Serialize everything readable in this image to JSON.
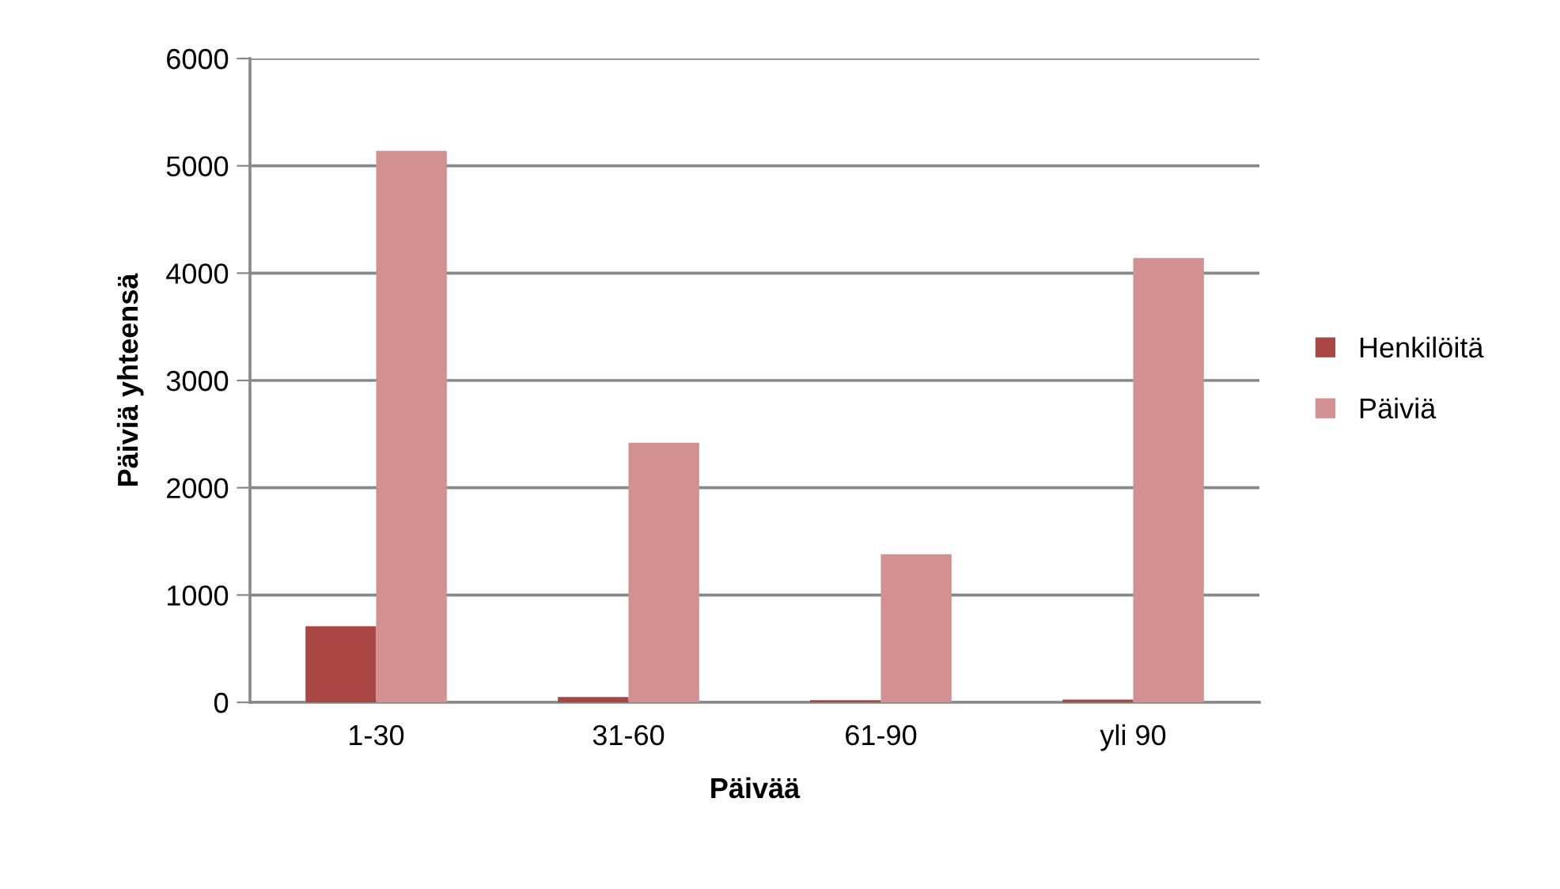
{
  "chart_data": {
    "type": "bar",
    "xlabel": "Päivää",
    "ylabel": "Päiviä yhteensä",
    "categories": [
      "1-30",
      "31-60",
      "61-90",
      "yli 90"
    ],
    "series": [
      {
        "name": "Henkilöitä",
        "color": "#a94744",
        "values": [
          710,
          50,
          20,
          25
        ]
      },
      {
        "name": "Päiviä",
        "color": "#d29090",
        "values": [
          5140,
          2420,
          1380,
          4140
        ]
      }
    ],
    "ylim": [
      0,
      6000
    ],
    "yticks": [
      0,
      1000,
      2000,
      3000,
      4000,
      5000,
      6000
    ],
    "grid": "y",
    "legend": "right"
  }
}
